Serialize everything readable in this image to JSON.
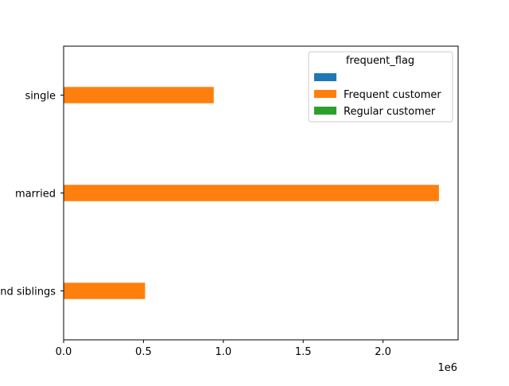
{
  "chart_data": {
    "type": "bar",
    "orientation": "horizontal",
    "categories": [
      "and siblings",
      "married",
      "single"
    ],
    "series": [
      {
        "name": "",
        "values": [
          0,
          0,
          0
        ],
        "color": "#1f77b4"
      },
      {
        "name": "Frequent customer",
        "values": [
          510000,
          2350000,
          940000
        ],
        "color": "#ff7f0e"
      },
      {
        "name": "Regular customer",
        "values": [
          0,
          0,
          0
        ],
        "color": "#2ca02c"
      }
    ],
    "xlim": [
      0,
      2470000
    ],
    "x_ticks": [
      {
        "value": 0,
        "label": "0.0"
      },
      {
        "value": 500000,
        "label": "0.5"
      },
      {
        "value": 1000000,
        "label": "1.0"
      },
      {
        "value": 1500000,
        "label": "1.5"
      },
      {
        "value": 2000000,
        "label": "2.0"
      }
    ],
    "x_offset_label": "1e6",
    "legend": {
      "title": "frequent_flag",
      "placement": "top-right"
    },
    "grid": false
  }
}
